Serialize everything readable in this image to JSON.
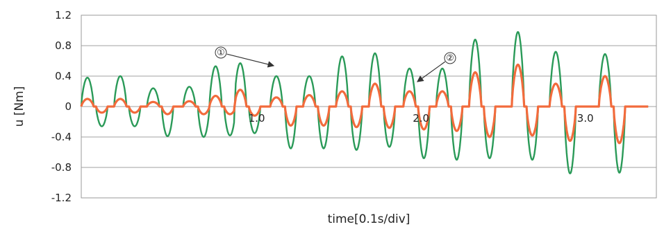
{
  "chart_data": {
    "type": "line",
    "title": "",
    "xlabel": "time[0.1s/div]",
    "ylabel": "u [Nm]",
    "ylim": [
      -1.2,
      1.2
    ],
    "xlim": [
      0,
      3.5
    ],
    "y_ticks": [
      "1.2",
      "0.8",
      "0.4",
      "0",
      "-0.4",
      "-0.8",
      "-1.2"
    ],
    "x_tick_labels": [
      {
        "x": 1.0,
        "label": "1.0"
      },
      {
        "x": 2.0,
        "label": "2.0"
      },
      {
        "x": 3.0,
        "label": "3.0"
      }
    ],
    "grid": true,
    "legend": "none",
    "annotations": [
      {
        "label": "①",
        "target": "green series peak near t=0.93"
      },
      {
        "label": "②",
        "target": "orange series peak near t=1.86"
      }
    ],
    "pulses": [
      {
        "t": 0.0,
        "g_pos": 0.38,
        "g_neg": -0.26,
        "o_pos": 0.1,
        "o_neg": -0.08
      },
      {
        "t": 0.2,
        "g_pos": 0.4,
        "g_neg": -0.26,
        "o_pos": 0.1,
        "o_neg": -0.08
      },
      {
        "t": 0.4,
        "g_pos": 0.24,
        "g_neg": -0.39,
        "o_pos": 0.06,
        "o_neg": -0.1
      },
      {
        "t": 0.62,
        "g_pos": 0.26,
        "g_neg": -0.4,
        "o_pos": 0.07,
        "o_neg": -0.1
      },
      {
        "t": 0.78,
        "g_pos": 0.53,
        "g_neg": -0.38,
        "o_pos": 0.14,
        "o_neg": -0.1
      },
      {
        "t": 0.93,
        "g_pos": 0.57,
        "g_neg": -0.35,
        "o_pos": 0.22,
        "o_neg": -0.12
      },
      {
        "t": 1.15,
        "g_pos": 0.4,
        "g_neg": -0.55,
        "o_pos": 0.12,
        "o_neg": -0.25
      },
      {
        "t": 1.35,
        "g_pos": 0.4,
        "g_neg": -0.55,
        "o_pos": 0.15,
        "o_neg": -0.25
      },
      {
        "t": 1.55,
        "g_pos": 0.66,
        "g_neg": -0.57,
        "o_pos": 0.2,
        "o_neg": -0.27
      },
      {
        "t": 1.75,
        "g_pos": 0.7,
        "g_neg": -0.53,
        "o_pos": 0.3,
        "o_neg": -0.28
      },
      {
        "t": 1.96,
        "g_pos": 0.5,
        "g_neg": -0.68,
        "o_pos": 0.2,
        "o_neg": -0.3
      },
      {
        "t": 2.16,
        "g_pos": 0.5,
        "g_neg": -0.7,
        "o_pos": 0.2,
        "o_neg": -0.32
      },
      {
        "t": 2.36,
        "g_pos": 0.88,
        "g_neg": -0.68,
        "o_pos": 0.45,
        "o_neg": -0.4
      },
      {
        "t": 2.62,
        "g_pos": 0.98,
        "g_neg": -0.7,
        "o_pos": 0.55,
        "o_neg": -0.38
      },
      {
        "t": 2.85,
        "g_pos": 0.72,
        "g_neg": -0.88,
        "o_pos": 0.3,
        "o_neg": -0.45
      },
      {
        "t": 3.15,
        "g_pos": 0.69,
        "g_neg": -0.87,
        "o_pos": 0.4,
        "o_neg": -0.48
      }
    ],
    "series": [
      {
        "color": "#2a9a58"
      },
      {
        "color": "#f26b3c"
      }
    ]
  }
}
